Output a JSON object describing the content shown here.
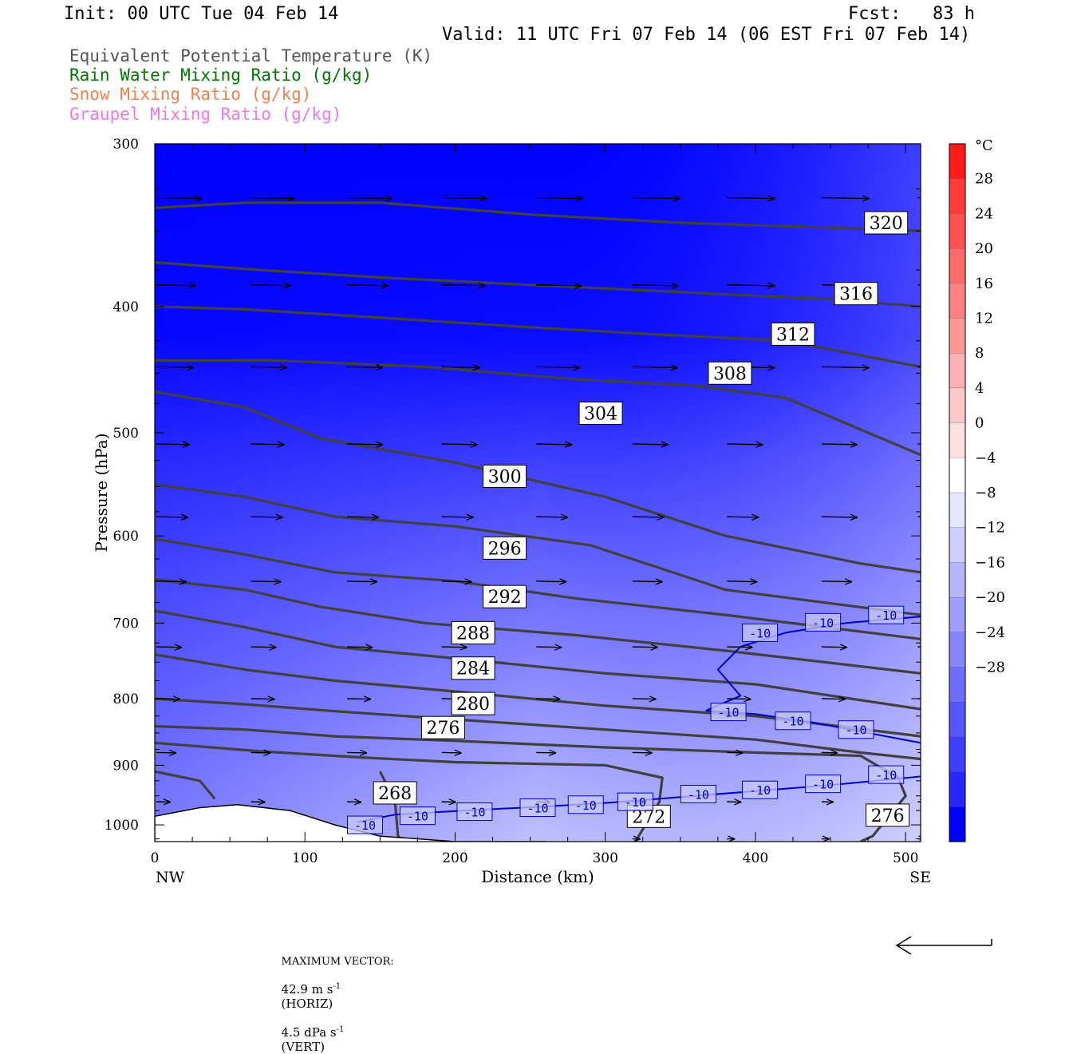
{
  "header": {
    "init": "Init: 00 UTC Tue 04 Feb 14",
    "fcst": "Fcst:   83 h",
    "valid": "Valid: 11 UTC Fri 07 Feb 14 (06 EST Fri 07 Feb 14)"
  },
  "legend": [
    {
      "label": "Equivalent Potential Temperature (K)",
      "color": "#555555"
    },
    {
      "label": "Rain Water Mixing Ratio (g/kg)",
      "color": "#007700"
    },
    {
      "label": "Snow Mixing Ratio (g/kg)",
      "color": "#f08050"
    },
    {
      "label": "Graupel Mixing Ratio (g/kg)",
      "color": "#ee77ee"
    }
  ],
  "footer": {
    "max_vector_label": "MAXIMUM VECTOR:",
    "horiz_value": "42.9 m s",
    "horiz_exp": "-1",
    "horiz_tag": "(HORIZ)",
    "vert_value": "4.5 dPa s",
    "vert_exp": "-1",
    "vert_tag": "(VERT)"
  },
  "chart_data": {
    "type": "contour",
    "xlabel": "Distance (km)",
    "ylabel": "Pressure (hPa)",
    "xlim": [
      0,
      510
    ],
    "ylim": [
      1030,
      300
    ],
    "y_log": true,
    "x_ticks": [
      0,
      100,
      200,
      300,
      400,
      500
    ],
    "y_ticks": [
      300,
      400,
      500,
      600,
      700,
      800,
      900,
      1000
    ],
    "x_end_labels": {
      "left": "NW",
      "right": "SE"
    },
    "colorbar": {
      "unit": "°C",
      "levels": [
        28,
        24,
        20,
        16,
        12,
        8,
        4,
        0,
        -4,
        -8,
        -12,
        -16,
        -20,
        -24,
        -28
      ],
      "colors_top_to_bottom": [
        "#ff1a1a",
        "#ff3a3a",
        "#ff5252",
        "#ff6a6a",
        "#ff8080",
        "#ff9898",
        "#ffb0b0",
        "#ffc8c8",
        "#ffe0e0",
        "#ffffff",
        "#e6e6ff",
        "#ceceff",
        "#b6b6ff",
        "#9e9eff",
        "#8686ff",
        "#6e6eff",
        "#5656ff",
        "#3e3eff",
        "#2626ff",
        "#0000ff"
      ]
    },
    "theta_e_contours": [
      {
        "label": "320",
        "points": [
          [
            0,
            336
          ],
          [
            60,
            333
          ],
          [
            150,
            333
          ],
          [
            250,
            340
          ],
          [
            350,
            345
          ],
          [
            450,
            348
          ],
          [
            510,
            350
          ]
        ]
      },
      {
        "label": "316",
        "points": [
          [
            0,
            370
          ],
          [
            70,
            375
          ],
          [
            150,
            380
          ],
          [
            250,
            385
          ],
          [
            350,
            390
          ],
          [
            450,
            395
          ],
          [
            510,
            400
          ]
        ]
      },
      {
        "label": "312",
        "points": [
          [
            0,
            400
          ],
          [
            60,
            402
          ],
          [
            150,
            408
          ],
          [
            250,
            415
          ],
          [
            330,
            420
          ],
          [
            420,
            425
          ],
          [
            510,
            445
          ]
        ]
      },
      {
        "label": "308",
        "points": [
          [
            0,
            440
          ],
          [
            80,
            440
          ],
          [
            180,
            445
          ],
          [
            280,
            455
          ],
          [
            360,
            460
          ],
          [
            420,
            470
          ],
          [
            510,
            520
          ]
        ]
      },
      {
        "label": "304",
        "points": [
          [
            0,
            465
          ],
          [
            60,
            478
          ],
          [
            110,
            505
          ],
          [
            200,
            527
          ],
          [
            300,
            560
          ],
          [
            380,
            600
          ],
          [
            470,
            630
          ],
          [
            510,
            640
          ]
        ]
      },
      {
        "label": "300",
        "points": [
          [
            0,
            548
          ],
          [
            60,
            560
          ],
          [
            120,
            580
          ],
          [
            200,
            590
          ],
          [
            290,
            610
          ],
          [
            380,
            660
          ],
          [
            510,
            690
          ]
        ]
      },
      {
        "label": "296",
        "points": [
          [
            0,
            603
          ],
          [
            60,
            620
          ],
          [
            120,
            640
          ],
          [
            200,
            650
          ],
          [
            280,
            670
          ],
          [
            380,
            690
          ],
          [
            510,
            720
          ]
        ]
      },
      {
        "label": "292",
        "points": [
          [
            0,
            648
          ],
          [
            60,
            660
          ],
          [
            110,
            680
          ],
          [
            180,
            700
          ],
          [
            280,
            715
          ],
          [
            380,
            735
          ],
          [
            510,
            765
          ]
        ]
      },
      {
        "label": "288",
        "points": [
          [
            0,
            685
          ],
          [
            60,
            705
          ],
          [
            120,
            730
          ],
          [
            200,
            745
          ],
          [
            300,
            765
          ],
          [
            400,
            780
          ],
          [
            510,
            815
          ]
        ]
      },
      {
        "label": "284",
        "points": [
          [
            0,
            740
          ],
          [
            60,
            760
          ],
          [
            120,
            775
          ],
          [
            200,
            790
          ],
          [
            300,
            810
          ],
          [
            400,
            825
          ],
          [
            510,
            855
          ]
        ]
      },
      {
        "label": "280",
        "points": [
          [
            0,
            800
          ],
          [
            60,
            808
          ],
          [
            120,
            818
          ],
          [
            200,
            830
          ],
          [
            300,
            845
          ],
          [
            400,
            860
          ],
          [
            470,
            880
          ],
          [
            510,
            890
          ]
        ]
      },
      {
        "label": "276",
        "points": [
          [
            0,
            840
          ],
          [
            60,
            845
          ],
          [
            120,
            855
          ],
          [
            200,
            862
          ],
          [
            300,
            872
          ],
          [
            400,
            880
          ],
          [
            470,
            885
          ],
          [
            495,
            920
          ],
          [
            500,
            950
          ],
          [
            478,
            1020
          ],
          [
            470,
            1030
          ]
        ]
      },
      {
        "label": "272",
        "points": [
          [
            0,
            865
          ],
          [
            70,
            878
          ],
          [
            140,
            888
          ],
          [
            200,
            895
          ],
          [
            300,
            900
          ],
          [
            338,
            920
          ],
          [
            336,
            960
          ],
          [
            320,
            1030
          ]
        ]
      },
      {
        "label": "268",
        "points": [
          [
            0,
            910
          ],
          [
            30,
            925
          ],
          [
            40,
            955
          ]
        ]
      },
      {
        "label": "268",
        "points": [
          [
            150,
            910
          ],
          [
            160,
            960
          ],
          [
            162,
            1020
          ],
          [
            166,
            1030
          ]
        ]
      }
    ],
    "temperature_contours": [
      {
        "label": "-10",
        "points": [
          [
            135,
            995
          ],
          [
            160,
            982
          ],
          [
            200,
            976
          ],
          [
            260,
            968
          ],
          [
            300,
            962
          ],
          [
            350,
            952
          ],
          [
            400,
            942
          ],
          [
            450,
            932
          ],
          [
            510,
            918
          ]
        ]
      },
      {
        "label": "-10",
        "points": [
          [
            367,
            817
          ],
          [
            390,
            796
          ],
          [
            375,
            760
          ],
          [
            390,
            730
          ],
          [
            420,
            712
          ],
          [
            460,
            700
          ],
          [
            510,
            692
          ]
        ]
      },
      {
        "label": "-10",
        "points": [
          [
            367,
            817
          ],
          [
            400,
            822
          ],
          [
            440,
            835
          ],
          [
            470,
            848
          ],
          [
            510,
            865
          ]
        ]
      }
    ],
    "theta_e_label_positions": [
      {
        "text": "320",
        "x": 487,
        "p": 345
      },
      {
        "text": "316",
        "x": 467,
        "p": 391
      },
      {
        "text": "312",
        "x": 425,
        "p": 420
      },
      {
        "text": "308",
        "x": 383,
        "p": 450
      },
      {
        "text": "304",
        "x": 297,
        "p": 483
      },
      {
        "text": "300",
        "x": 233,
        "p": 540
      },
      {
        "text": "296",
        "x": 233,
        "p": 613
      },
      {
        "text": "292",
        "x": 233,
        "p": 668
      },
      {
        "text": "288",
        "x": 212,
        "p": 712
      },
      {
        "text": "284",
        "x": 212,
        "p": 758
      },
      {
        "text": "280",
        "x": 212,
        "p": 807
      },
      {
        "text": "276",
        "x": 192,
        "p": 842
      },
      {
        "text": "268",
        "x": 160,
        "p": 945
      },
      {
        "text": "272",
        "x": 329,
        "p": 985
      },
      {
        "text": "276",
        "x": 488,
        "p": 983
      }
    ],
    "temperature_label_positions": [
      {
        "text": "-10",
        "x": 140,
        "p": 1000
      },
      {
        "text": "-10",
        "x": 175,
        "p": 984
      },
      {
        "text": "-10",
        "x": 213,
        "p": 977
      },
      {
        "text": "-10",
        "x": 255,
        "p": 970
      },
      {
        "text": "-10",
        "x": 287,
        "p": 965
      },
      {
        "text": "-10",
        "x": 320,
        "p": 960
      },
      {
        "text": "-10",
        "x": 362,
        "p": 947
      },
      {
        "text": "-10",
        "x": 403,
        "p": 940
      },
      {
        "text": "-10",
        "x": 445,
        "p": 930
      },
      {
        "text": "-10",
        "x": 487,
        "p": 915
      },
      {
        "text": "-10",
        "x": 403,
        "p": 712
      },
      {
        "text": "-10",
        "x": 445,
        "p": 699
      },
      {
        "text": "-10",
        "x": 487,
        "p": 690
      },
      {
        "text": "-10",
        "x": 382,
        "p": 819
      },
      {
        "text": "-10",
        "x": 425,
        "p": 832
      },
      {
        "text": "-10",
        "x": 467,
        "p": 845
      }
    ],
    "wind_vectors": {
      "x_positions": [
        0,
        63,
        127,
        190,
        253,
        317,
        380,
        443,
        507
      ],
      "rows": [
        {
          "p": 330,
          "lengths": [
            57,
            55,
            57,
            57,
            58,
            60,
            60,
            60,
            60
          ]
        },
        {
          "p": 385,
          "lengths": [
            50,
            50,
            52,
            55,
            57,
            58,
            60,
            60,
            60
          ]
        },
        {
          "p": 445,
          "lengths": [
            47,
            45,
            45,
            48,
            55,
            57,
            60,
            60,
            60
          ]
        },
        {
          "p": 510,
          "lengths": [
            42,
            42,
            45,
            45,
            45,
            45,
            45,
            45,
            45
          ]
        },
        {
          "p": 580,
          "lengths": [
            40,
            40,
            40,
            40,
            40,
            40,
            40,
            45,
            45
          ]
        },
        {
          "p": 650,
          "lengths": [
            38,
            38,
            38,
            38,
            38,
            38,
            38,
            38,
            38
          ]
        },
        {
          "p": 730,
          "lengths": [
            32,
            32,
            32,
            32,
            32,
            32,
            32,
            32,
            32
          ]
        },
        {
          "p": 800,
          "lengths": [
            30,
            30,
            30,
            30,
            30,
            30,
            30,
            30,
            30
          ]
        },
        {
          "p": 880,
          "lengths": [
            25,
            25,
            25,
            25,
            25,
            25,
            20,
            20,
            20
          ]
        },
        {
          "p": 960,
          "lengths": [
            18,
            18,
            18,
            18,
            18,
            18,
            18,
            15,
            15
          ]
        },
        {
          "p": 1025,
          "lengths": [
            0,
            0,
            0,
            0,
            0,
            10,
            10,
            10,
            10
          ]
        }
      ]
    },
    "terrain": {
      "points": [
        [
          0,
          985
        ],
        [
          30,
          970
        ],
        [
          55,
          965
        ],
        [
          90,
          975
        ],
        [
          120,
          1000
        ],
        [
          150,
          1020
        ],
        [
          200,
          1030
        ],
        [
          260,
          1030
        ]
      ]
    }
  }
}
